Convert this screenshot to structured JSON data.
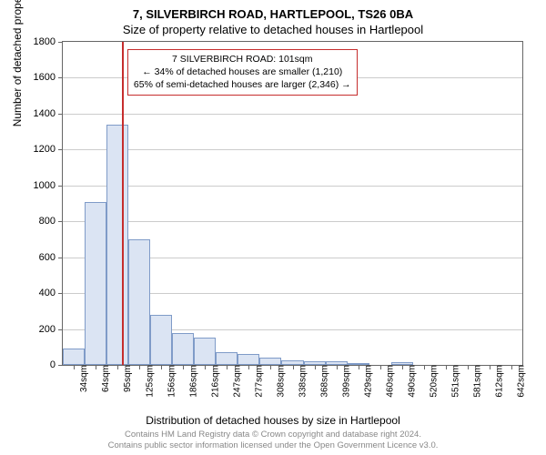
{
  "title_line1": "7, SILVERBIRCH ROAD, HARTLEPOOL, TS26 0BA",
  "title_line2": "Size of property relative to detached houses in Hartlepool",
  "y_axis_title": "Number of detached properties",
  "x_axis_title": "Distribution of detached houses by size in Hartlepool",
  "chart": {
    "type": "histogram",
    "background_color": "#ffffff",
    "grid_color": "#cccccc",
    "axis_color": "#666666",
    "bar_fill": "#dbe4f3",
    "bar_border": "#7f9bc8",
    "marker_color": "#c62d2d",
    "ylim": [
      0,
      1800
    ],
    "ytick_step": 200,
    "yticks": [
      0,
      200,
      400,
      600,
      800,
      1000,
      1200,
      1400,
      1600,
      1800
    ],
    "x_categories": [
      "34sqm",
      "64sqm",
      "95sqm",
      "125sqm",
      "156sqm",
      "186sqm",
      "216sqm",
      "247sqm",
      "277sqm",
      "308sqm",
      "338sqm",
      "368sqm",
      "399sqm",
      "429sqm",
      "460sqm",
      "490sqm",
      "520sqm",
      "551sqm",
      "581sqm",
      "612sqm",
      "642sqm"
    ],
    "values": [
      90,
      910,
      1340,
      700,
      280,
      180,
      150,
      70,
      60,
      40,
      25,
      18,
      18,
      12,
      0,
      15,
      0,
      0,
      0,
      0,
      0
    ],
    "marker_position": 101,
    "x_range": [
      34,
      642
    ],
    "bar_width_ratio": 1.0
  },
  "annotation": {
    "line1": "7 SILVERBIRCH ROAD: 101sqm",
    "line2": "← 34% of detached houses are smaller (1,210)",
    "line3": "65% of semi-detached houses are larger (2,346) →"
  },
  "footer_line1": "Contains HM Land Registry data © Crown copyright and database right 2024.",
  "footer_line2": "Contains public sector information licensed under the Open Government Licence v3.0."
}
